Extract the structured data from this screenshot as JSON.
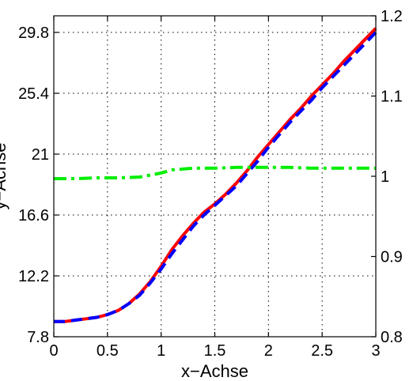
{
  "chart_data": {
    "type": "line",
    "title": "",
    "xlabel": "x−Achse",
    "ylabel": "y−Achse",
    "xlim": [
      0,
      3
    ],
    "ylim_left": [
      7.8,
      31.0
    ],
    "ylim_right": [
      0.8,
      1.2
    ],
    "grid": true,
    "legend": "none",
    "x_ticks": [
      0,
      0.5,
      1,
      1.5,
      2,
      2.5,
      3
    ],
    "x_tick_labels": [
      "0",
      "0.5",
      "1",
      "1.5",
      "2",
      "2.5",
      "3"
    ],
    "y_left_ticks": [
      7.8,
      12.2,
      16.6,
      21,
      25.4,
      29.8
    ],
    "y_left_tick_labels": [
      "7.8",
      "12.2",
      "16.6",
      "21",
      "25.4",
      "29.8"
    ],
    "y_right_ticks": [
      0.8,
      0.9,
      1.0,
      1.1,
      1.2
    ],
    "y_right_tick_labels": [
      "0.8",
      "0.9",
      "1",
      "1.1",
      "1.2"
    ],
    "series": [
      {
        "axis": "left",
        "color": "#ff0000",
        "style": "solid",
        "x": [
          0,
          0.1,
          0.2,
          0.3,
          0.4,
          0.5,
          0.6,
          0.7,
          0.8,
          0.9,
          1.0,
          1.1,
          1.2,
          1.3,
          1.4,
          1.5,
          1.6,
          1.7,
          1.8,
          1.9,
          2.0,
          2.1,
          2.2,
          2.3,
          2.4,
          2.5,
          2.6,
          2.7,
          2.8,
          2.9,
          3.0
        ],
        "values": [
          8.9,
          8.9,
          9.0,
          9.1,
          9.2,
          9.4,
          9.7,
          10.2,
          10.9,
          11.8,
          12.9,
          14.1,
          15.1,
          16.0,
          16.8,
          17.4,
          18.1,
          18.9,
          19.8,
          20.8,
          21.7,
          22.6,
          23.5,
          24.3,
          25.2,
          26.0,
          26.8,
          27.7,
          28.5,
          29.3,
          30.1
        ]
      },
      {
        "axis": "left",
        "color": "#0000ff",
        "style": "dashed",
        "x": [
          0,
          0.1,
          0.2,
          0.3,
          0.4,
          0.5,
          0.6,
          0.7,
          0.8,
          0.9,
          1.0,
          1.1,
          1.2,
          1.3,
          1.4,
          1.5,
          1.6,
          1.7,
          1.8,
          1.9,
          2.0,
          2.1,
          2.2,
          2.3,
          2.4,
          2.5,
          2.6,
          2.7,
          2.8,
          2.9,
          3.0
        ],
        "values": [
          8.9,
          8.9,
          9.0,
          9.1,
          9.2,
          9.4,
          9.7,
          10.2,
          10.8,
          11.7,
          12.7,
          13.8,
          14.8,
          15.8,
          16.6,
          17.3,
          18.0,
          18.7,
          19.6,
          20.5,
          21.5,
          22.4,
          23.3,
          24.1,
          24.9,
          25.8,
          26.6,
          27.4,
          28.2,
          29.0,
          29.8
        ]
      },
      {
        "axis": "right",
        "color": "#00ee00",
        "style": "dashdot",
        "x": [
          0,
          0.2,
          0.4,
          0.6,
          0.8,
          1.0,
          1.1,
          1.2,
          1.3,
          1.5,
          1.7,
          1.8,
          2.0,
          2.2,
          2.4,
          2.6,
          2.8,
          3.0
        ],
        "values": [
          0.997,
          0.997,
          0.998,
          0.998,
          0.999,
          1.004,
          1.008,
          1.009,
          1.01,
          1.01,
          1.011,
          1.011,
          1.011,
          1.011,
          1.01,
          1.01,
          1.01,
          1.01
        ]
      }
    ]
  }
}
